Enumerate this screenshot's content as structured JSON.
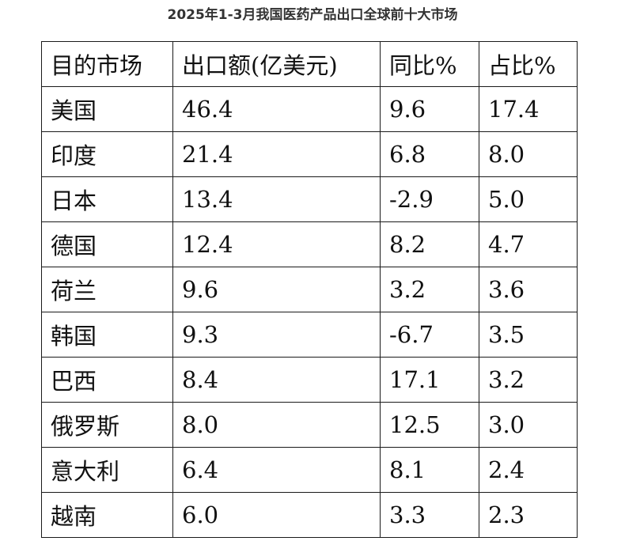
{
  "title": "2025年1-3月我国医药产品出口全球前十大市场",
  "chart_data": {
    "type": "table",
    "title": "2025年1-3月我国医药产品出口全球前十大市场",
    "columns": [
      "目的市场",
      "出口额(亿美元)",
      "同比%",
      "占比%"
    ],
    "rows": [
      [
        "美国",
        "46.4",
        "9.6",
        "17.4"
      ],
      [
        "印度",
        "21.4",
        "6.8",
        "8.0"
      ],
      [
        "日本",
        "13.4",
        "-2.9",
        "5.0"
      ],
      [
        "德国",
        "12.4",
        "8.2",
        "4.7"
      ],
      [
        "荷兰",
        "9.6",
        "3.2",
        "3.6"
      ],
      [
        "韩国",
        "9.3",
        "-6.7",
        "3.5"
      ],
      [
        "巴西",
        "8.4",
        "17.1",
        "3.2"
      ],
      [
        "俄罗斯",
        "8.0",
        "12.5",
        "3.0"
      ],
      [
        "意大利",
        "6.4",
        "8.1",
        "2.4"
      ],
      [
        "越南",
        "6.0",
        "3.3",
        "2.3"
      ]
    ]
  }
}
